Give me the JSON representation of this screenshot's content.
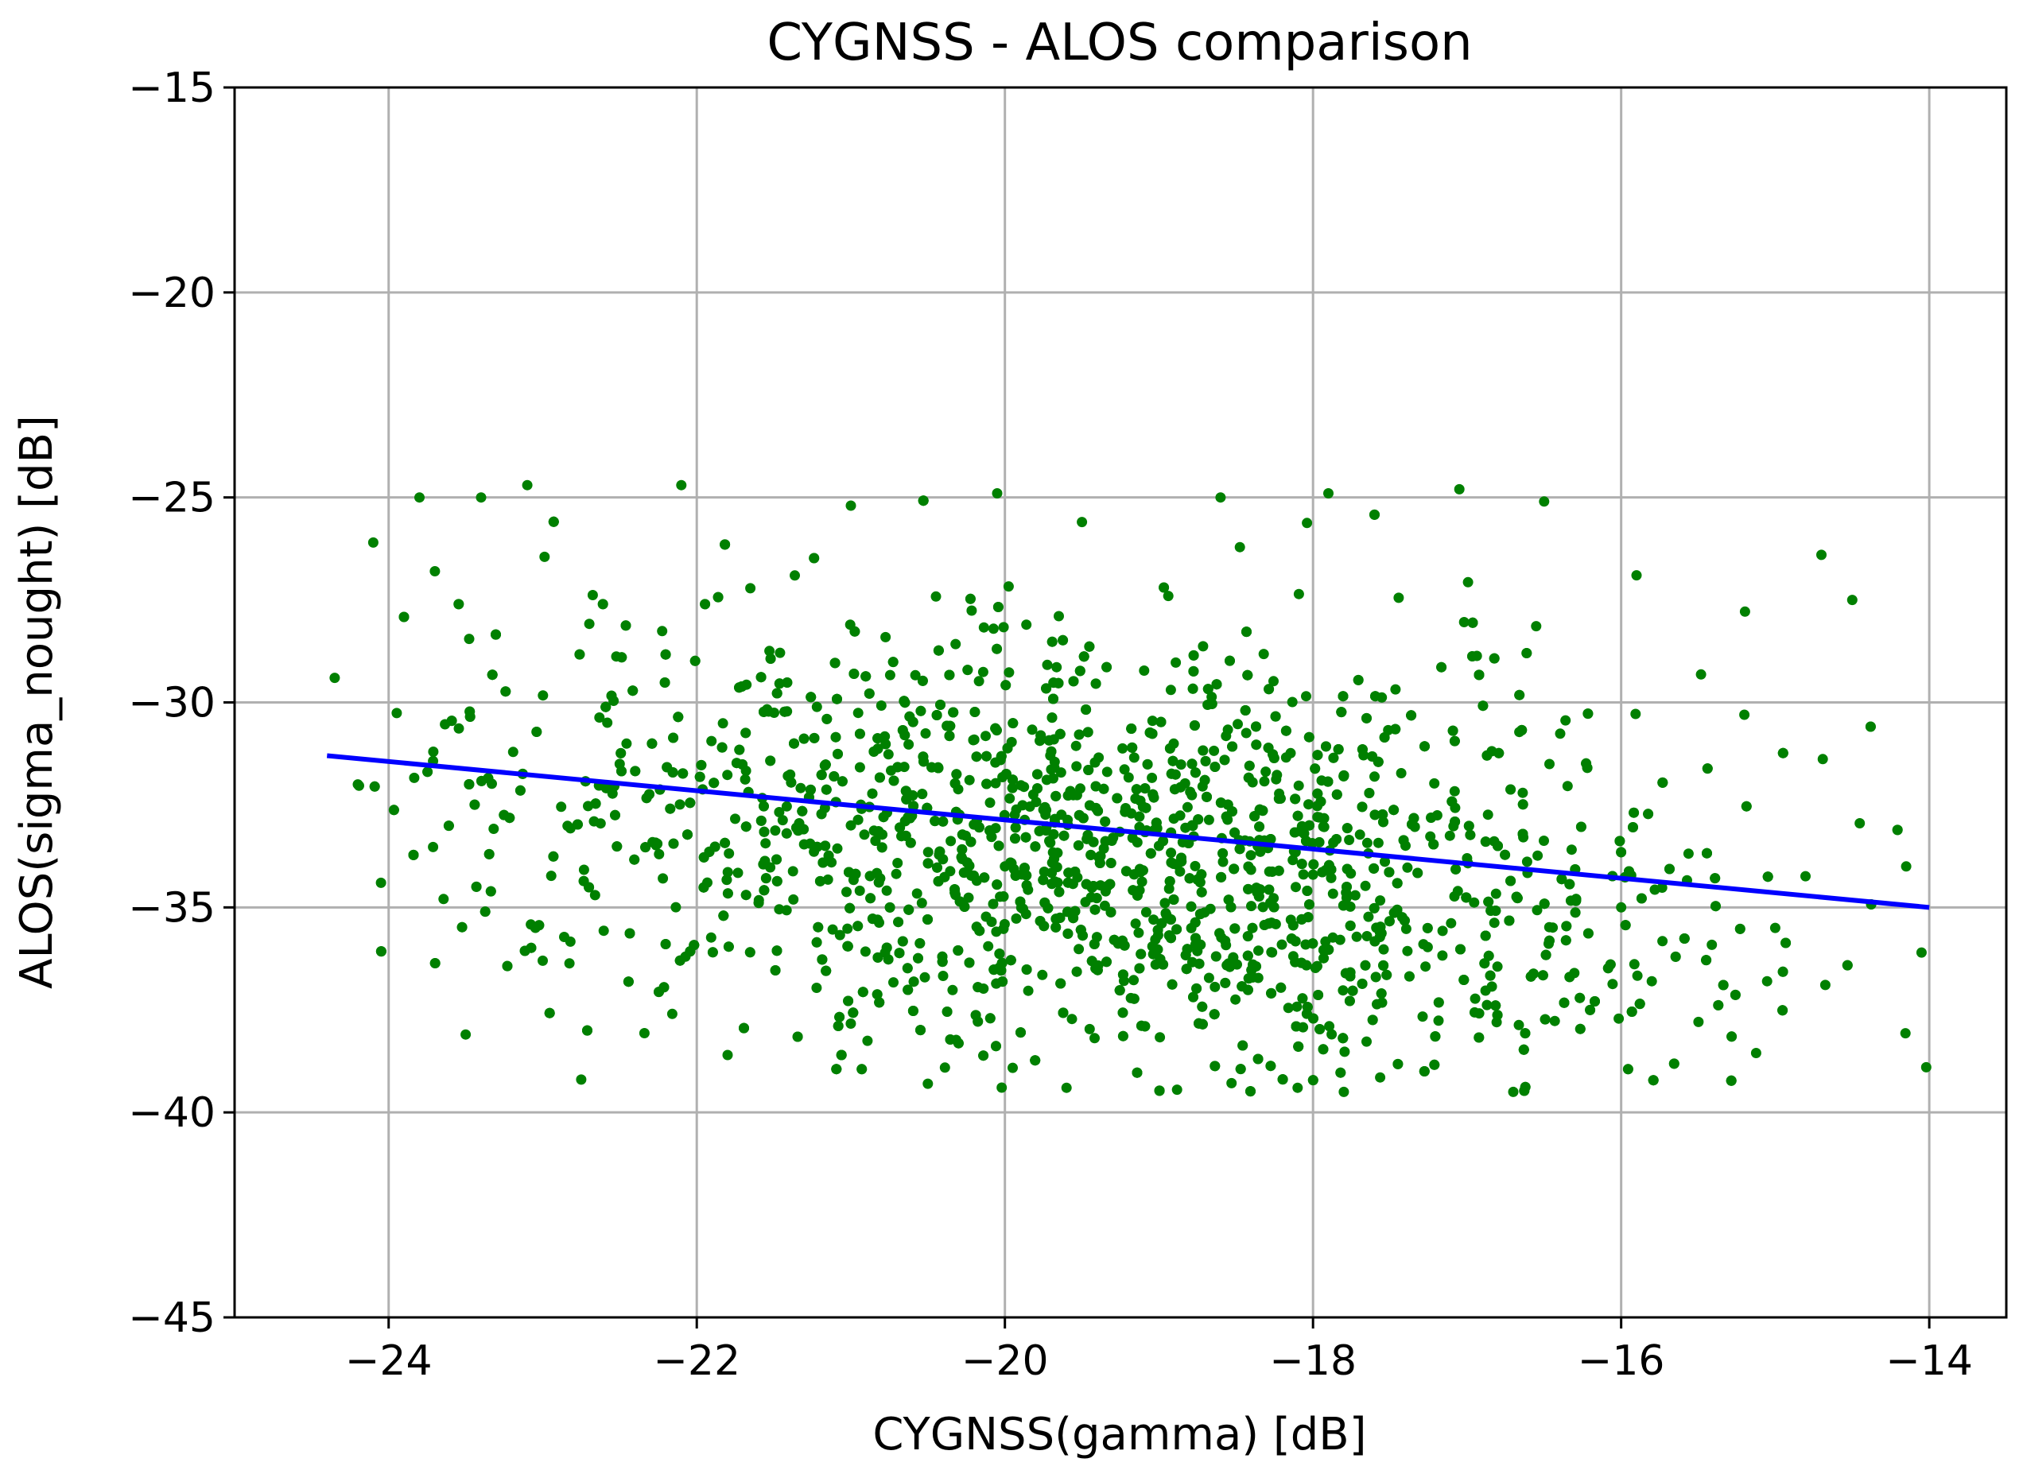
{
  "chart_data": {
    "type": "scatter",
    "title": "CYGNSS - ALOS comparison",
    "xlabel": "CYGNSS(gamma) [dB]",
    "ylabel": "ALOS(sigma_nought) [dB]",
    "xlim": [
      -25,
      -13.5
    ],
    "ylim": [
      -45,
      -15
    ],
    "xticks": [
      -24,
      -22,
      -20,
      -18,
      -16,
      -14
    ],
    "yticks": [
      -45,
      -40,
      -35,
      -30,
      -25,
      -20,
      -15
    ],
    "xtick_labels": [
      "−24",
      "−22",
      "−20",
      "−18",
      "−16",
      "−14"
    ],
    "ytick_labels": [
      "−45",
      "−40",
      "−35",
      "−30",
      "−25",
      "−20",
      "−15"
    ],
    "grid": true,
    "colors": {
      "points": "#008000",
      "fit_line": "#0000ff"
    },
    "scatter_summary": {
      "n_points": 2600,
      "x_range": [
        -24.4,
        -14.0
      ],
      "y_range": [
        -39.5,
        -24.7
      ],
      "x_center": -19.3,
      "y_center": -33.8,
      "note": "approximate density of green points"
    },
    "points_sample": [
      [
        -24.35,
        -29.4
      ],
      [
        -24.2,
        -32.0
      ],
      [
        -24.1,
        -26.1
      ],
      [
        -24.05,
        -34.4
      ],
      [
        -23.8,
        -25.0
      ],
      [
        -23.7,
        -26.8
      ],
      [
        -23.5,
        -38.1
      ],
      [
        -23.4,
        -25.0
      ],
      [
        -23.1,
        -24.7
      ],
      [
        -23.0,
        -36.3
      ],
      [
        -22.75,
        -39.2
      ],
      [
        -22.1,
        -24.7
      ],
      [
        -21.8,
        -38.6
      ],
      [
        -21.0,
        -25.2
      ],
      [
        -20.5,
        -39.3
      ],
      [
        -20.05,
        -24.9
      ],
      [
        -19.6,
        -39.4
      ],
      [
        -19.5,
        -25.6
      ],
      [
        -18.6,
        -25.0
      ],
      [
        -18.1,
        -39.4
      ],
      [
        -17.9,
        -24.9
      ],
      [
        -17.8,
        -39.5
      ],
      [
        -17.05,
        -24.8
      ],
      [
        -16.7,
        -39.5
      ],
      [
        -16.5,
        -25.1
      ],
      [
        -15.9,
        -26.9
      ],
      [
        -15.2,
        -30.3
      ],
      [
        -14.7,
        -26.4
      ],
      [
        -14.5,
        -27.5
      ],
      [
        -14.15,
        -34.0
      ],
      [
        -14.02,
        -38.9
      ],
      [
        -14.05,
        -36.1
      ],
      [
        -22.5,
        -31.5
      ],
      [
        -21.0,
        -33.0
      ],
      [
        -20.0,
        -34.0
      ],
      [
        -19.0,
        -33.5
      ],
      [
        -18.0,
        -34.2
      ],
      [
        -17.0,
        -33.8
      ],
      [
        -16.0,
        -35.0
      ],
      [
        -15.0,
        -35.5
      ]
    ],
    "fit_line": {
      "x": [
        -24.4,
        -14.0
      ],
      "y": [
        -31.3,
        -35.0
      ]
    }
  }
}
